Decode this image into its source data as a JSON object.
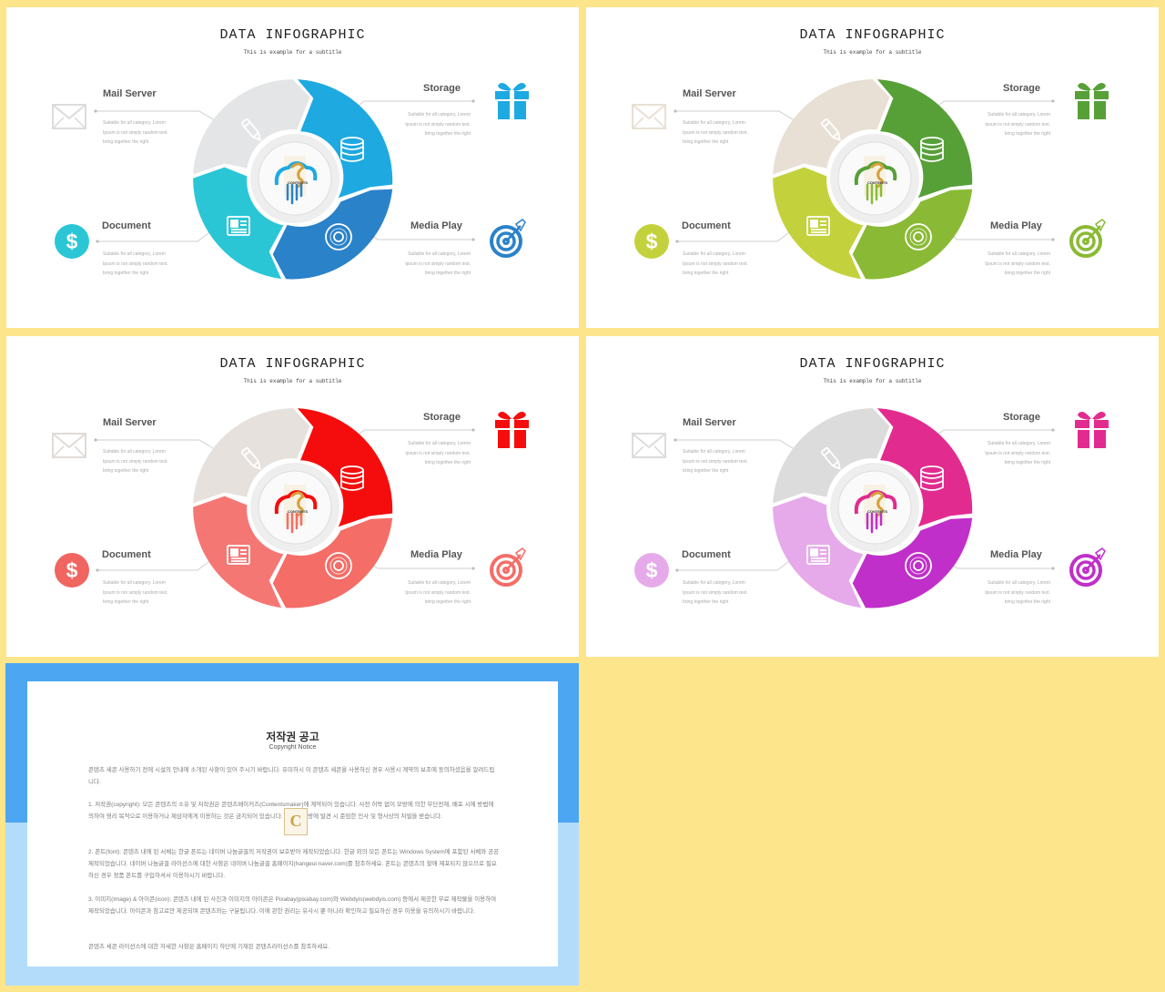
{
  "slide": {
    "title": "DATA INFOGRAPHIC",
    "subtitle": "This is example  for a subtitle",
    "labels": {
      "mail": "Mail Server",
      "storage": "Storage",
      "document": "Document",
      "media": "Media Play"
    },
    "description_lines": [
      "Suitable for all category, Lorem",
      "Ipsum is not simply random text.",
      "bring together the right"
    ],
    "logo_text": "CONTENTS"
  },
  "themes": [
    {
      "name": "blue",
      "colors": [
        "#e3e5e7",
        "#1ea9e1",
        "#2a82c9",
        "#2bc6d6"
      ],
      "icon_colors": [
        "#dcdcdc",
        "#1ea9e1",
        "#2a82c9",
        "#2bc6d6"
      ]
    },
    {
      "name": "green",
      "colors": [
        "#e8e0d4",
        "#57a038",
        "#8aba35",
        "#c3d23c"
      ],
      "icon_colors": [
        "#e8e0d4",
        "#57a038",
        "#8aba35",
        "#c3d23c"
      ]
    },
    {
      "name": "red",
      "colors": [
        "#e6e1dd",
        "#f50d0d",
        "#f56d67",
        "#f57773"
      ],
      "icon_colors": [
        "#e0dbd7",
        "#f50d0d",
        "#f56d67",
        "#f06560"
      ]
    },
    {
      "name": "pink",
      "colors": [
        "#dcdcdc",
        "#e22b8f",
        "#c02fc9",
        "#e6aaea"
      ],
      "icon_colors": [
        "#dcdcdc",
        "#e22b8f",
        "#c02fc9",
        "#e6aaea"
      ]
    }
  ],
  "notice": {
    "title": "저작권 공고",
    "subtitle": "Copyright Notice",
    "paragraphs": [
      "콘텐츠 세콘 사용하기 전에 시설의 안내에 소개된 사항이 있어 주시기 바랍니다. 유미하시 이 콘텐츠 세콘을 사용하신 경우 사용시 계약의 보조에 동의하셨음을 알려드립니다.",
      "1. 저작권(copyright): 모든 콘텐츠의 소유 및 저작권은 콘텐츠메이커즈(Contentsmaker)에 계약되어 있습니다. 사전 허락 없이 모방에 의한 무단전재, 배포 시에 방법에 의하여 영리 목적으로 이용하거나 제삼자에게 이용하는 것은 금지되어 있습니다. 이러한 모방에 발견 시 준엄한 민사 및 형사상의 처벌을 받습니다.",
      "2. 폰트(font): 콘텐츠 내에 된 서체는 한글 폰트는 네이버 나눔글꼴의 저작권이 보호받아 제작되었습니다. 한글 외의 모든 폰트는 Windows System에 포함된 서체와 공공 제작되었습니다. 네이버 나눔글꼴 라이선스에 대한 사항은 네이버 나눔글꼴 홈페이지(hangeul.naver.com)를 참조하세요. 폰트는 콘텐츠의 할애 제포되지 않으므로 필요하신 경우 정품 폰트를 구입하셔서 이용하시기 바랍니다.",
      "3. 이미지(image) & 아이콘(icon): 콘텐츠 내에 된 사진과 이미지의 아이콘은 Pixabay(pixabay.com)와 Webdyis(webdyis.com) 등에서 제공한 무료 제작물을 이용하여 제작되었습니다. 아이콘과 참고로만 제공되며 콘텐츠와는 구분됩니다. 이에 관한 권리는 유사시 뿐 아니라 확인하고 필요하신 경우 이용을 유의하시기 바랍니다.",
      "콘텐츠 세콘 라이선스에 대한 자세한 사항은 홈페이지 하단에 기재된 콘텐츠라이선스를 참조하세요."
    ],
    "logo_letter": "C"
  }
}
